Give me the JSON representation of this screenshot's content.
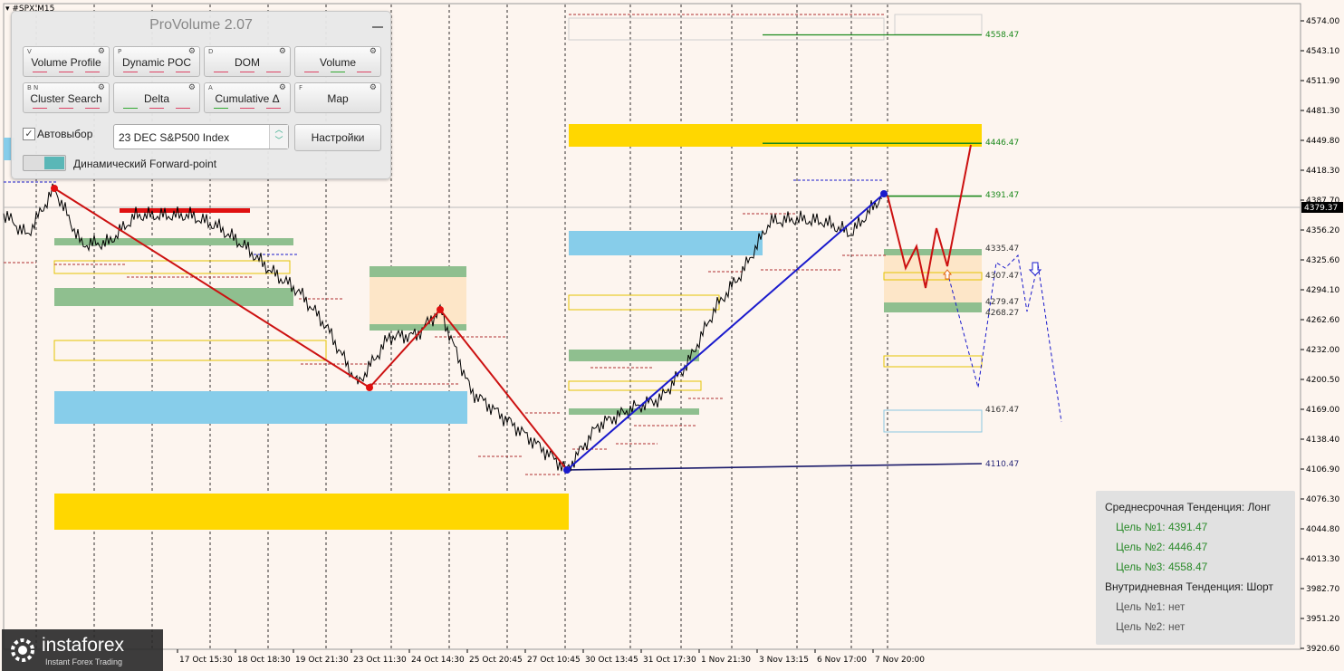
{
  "symbol": "#SPX,M15",
  "panel": {
    "title": "ProVolume 2.07",
    "buttons": [
      {
        "key": "V",
        "label": "Volume Profile"
      },
      {
        "key": "P",
        "label": "Dynamic POC"
      },
      {
        "key": "D",
        "label": "DOM"
      },
      {
        "key": "",
        "label": "Volume"
      },
      {
        "key": "B N",
        "label": "Cluster Search"
      },
      {
        "key": "",
        "label": "Delta"
      },
      {
        "key": "A",
        "label": "Cumulative Δ"
      },
      {
        "key": "F",
        "label": "Map"
      }
    ],
    "autoselect_label": "Автовыбор",
    "autoselect_checked": true,
    "instrument_value": "23 DEC S&P500 Index",
    "settings_label": "Настройки",
    "forward_point_label": "Динамический Forward-point"
  },
  "price_axis": {
    "ticks": [
      "4574.00",
      "4543.10",
      "4511.90",
      "4481.30",
      "4449.80",
      "4418.30",
      "4387.70",
      "4356.20",
      "4325.60",
      "4294.10",
      "4262.60",
      "4232.00",
      "4200.50",
      "4169.00",
      "4138.40",
      "4106.90",
      "4076.30",
      "4044.80",
      "4013.30",
      "3982.70",
      "3951.20",
      "3920.60"
    ],
    "current_price": "4379.37"
  },
  "time_axis": {
    "labels": [
      "17 Oct 15:30",
      "18 Oct 18:30",
      "19 Oct 21:30",
      "23 Oct 11:30",
      "24 Oct 14:30",
      "25 Oct 20:45",
      "27 Oct 10:45",
      "30 Oct 13:45",
      "31 Oct 17:30",
      "1 Nov 21:30",
      "3 Nov 13:15",
      "6 Nov 17:00",
      "7 Nov 20:00"
    ]
  },
  "levels": [
    {
      "label": "4558.47",
      "color": "#1d8a1d"
    },
    {
      "label": "4446.47",
      "color": "#1d8a1d"
    },
    {
      "label": "4391.47",
      "color": "#1d8a1d"
    },
    {
      "label": "4335.47",
      "color": "#333333"
    },
    {
      "label": "4307.47",
      "color": "#333333"
    },
    {
      "label": "4279.47",
      "color": "#333333"
    },
    {
      "label": "4268.27",
      "color": "#333333"
    },
    {
      "label": "4167.47",
      "color": "#333333"
    },
    {
      "label": "4110.47",
      "color": "#2a2a7a"
    }
  ],
  "trend": {
    "mid_title": "Среднесрочная Тенденция: Лонг",
    "mid_targets": [
      "Цель №1: 4391.47",
      "Цель №2: 4446.47",
      "Цель №3: 4558.47"
    ],
    "intra_title": "Внутридневная Тенденция: Шорт",
    "intra_targets": [
      "Цель №1: нет",
      "Цель №2: нет"
    ]
  },
  "logo": {
    "brand": "instaforex",
    "tagline": "Instant Forex Trading"
  },
  "colors": {
    "background": "#fdf5ef",
    "zone_yellow": "#ffd700",
    "zone_blue": "#87cdea",
    "zone_green": "#8fbf8f",
    "zone_orange": "#fde6c8",
    "zigzag_red": "#cc1111",
    "zigzag_blue": "#1a1acc",
    "target_green": "#1d8a1d",
    "target_text": "#2a8a2a"
  }
}
